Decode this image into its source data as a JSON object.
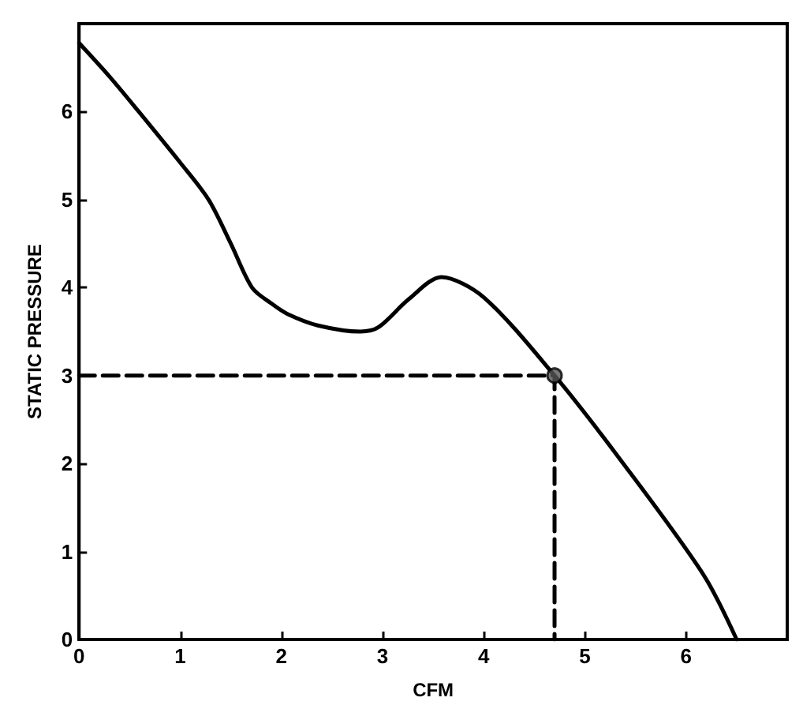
{
  "chart_data": {
    "type": "line",
    "xlabel": "CFM",
    "ylabel": "STATIC PRESSURE",
    "xlim": [
      0,
      7
    ],
    "ylim": [
      0,
      7
    ],
    "xticks": [
      0,
      1,
      2,
      3,
      4,
      5,
      6
    ],
    "yticks": [
      0,
      1,
      2,
      3,
      4,
      5,
      6
    ],
    "grid": false,
    "series": [
      {
        "color": "#000000",
        "line_style": "solid",
        "marker": "none",
        "x": [
          0,
          0.3,
          0.59,
          1.0,
          1.28,
          1.5,
          1.71,
          1.9,
          2.06,
          2.36,
          2.78,
          2.96,
          3.26,
          3.58,
          4.0,
          4.7,
          5.34,
          6.17,
          6.5
        ],
        "values": [
          6.78,
          6.4,
          6.0,
          5.42,
          5.0,
          4.5,
          4.0,
          3.82,
          3.7,
          3.57,
          3.5,
          3.55,
          3.87,
          4.12,
          3.89,
          3.0,
          2.06,
          0.74,
          0
        ]
      },
      {
        "color": "#000000",
        "line_style": "dashed",
        "marker": "none",
        "x": [
          0,
          4.7,
          4.7
        ],
        "values": [
          3.0,
          3.0,
          0
        ]
      },
      {
        "type": "scatter",
        "color": "#555555",
        "marker": "circle",
        "x": [
          4.7
        ],
        "values": [
          3.0
        ]
      }
    ]
  }
}
